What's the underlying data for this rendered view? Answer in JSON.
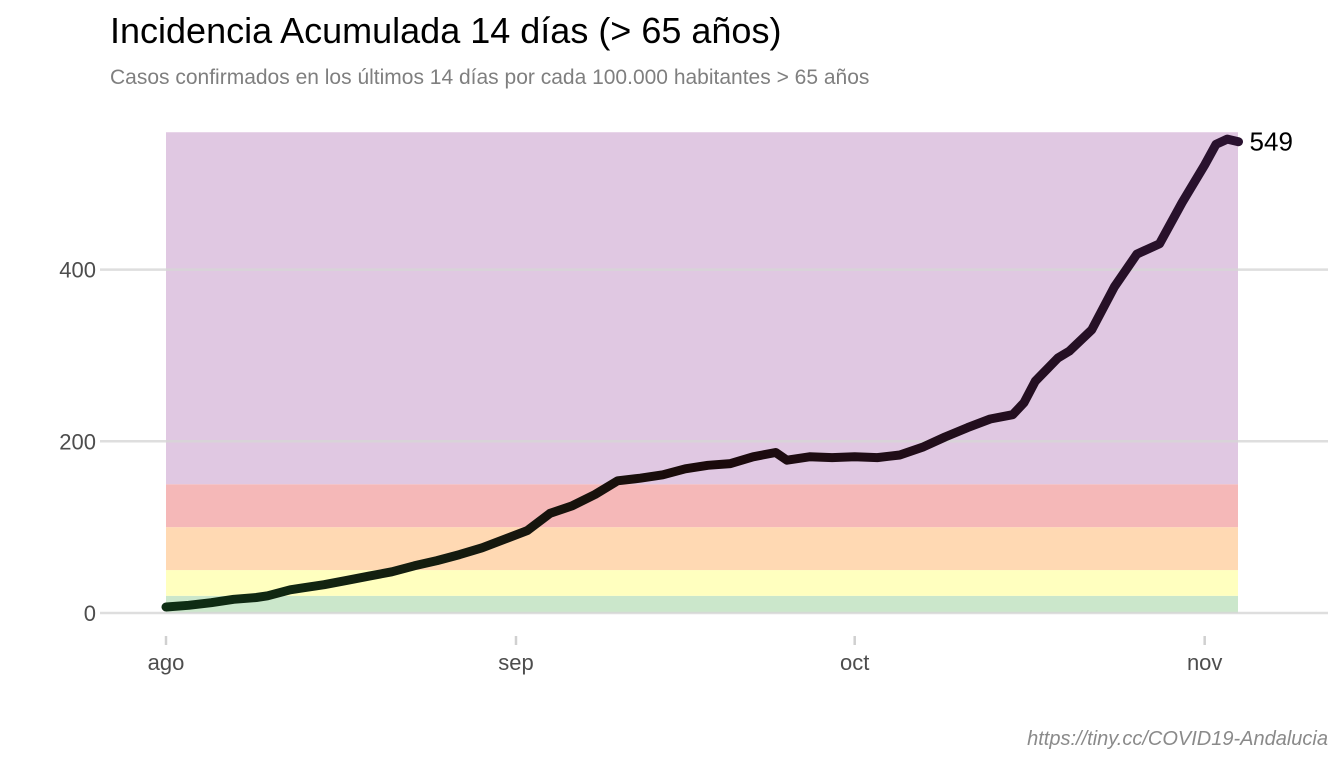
{
  "title": "Incidencia Acumulada 14 días (> 65 años)",
  "subtitle": "Casos confirmados en los últimos 14 días por cada 100.000 habitantes > 65 años",
  "source": "https://tiny.cc/COVID19-Andalucia",
  "chart_data": {
    "type": "line",
    "title": "Incidencia Acumulada 14 días (> 65 años)",
    "subtitle": "Casos confirmados en los últimos 14 días por cada 100.000 habitantes > 65 años",
    "xlabel": "",
    "ylabel": "",
    "xlim": [
      "2020-08-01",
      "2020-11-04"
    ],
    "ylim": [
      0,
      560
    ],
    "x_ticks": [
      {
        "date": "2020-08-01",
        "label": "ago"
      },
      {
        "date": "2020-09-01",
        "label": "sep"
      },
      {
        "date": "2020-10-01",
        "label": "oct"
      },
      {
        "date": "2020-11-01",
        "label": "nov"
      }
    ],
    "y_ticks": [
      0,
      200,
      400
    ],
    "grid": "horizontal",
    "legend": "none",
    "end_label": "549",
    "bands": [
      {
        "from": 0,
        "to": 20,
        "color": "#cbe7cb"
      },
      {
        "from": 20,
        "to": 50,
        "color": "#ffffbf"
      },
      {
        "from": 50,
        "to": 100,
        "color": "#ffd9b3"
      },
      {
        "from": 100,
        "to": 150,
        "color": "#f5b8b8"
      },
      {
        "from": 150,
        "to": 560,
        "color": "#e0c8e2"
      }
    ],
    "line_colors": {
      "start": "#0e2e14",
      "middle": "#1a0a0a",
      "end": "#2a1230"
    },
    "series": [
      {
        "x": [
          "2020-08-01",
          "2020-08-03",
          "2020-08-05",
          "2020-08-07",
          "2020-08-09",
          "2020-08-10",
          "2020-08-12",
          "2020-08-13",
          "2020-08-15",
          "2020-08-17",
          "2020-08-19",
          "2020-08-21",
          "2020-08-23",
          "2020-08-25",
          "2020-08-27",
          "2020-08-29",
          "2020-08-31",
          "2020-09-02",
          "2020-09-04",
          "2020-09-06",
          "2020-09-08",
          "2020-09-10",
          "2020-09-12",
          "2020-09-14",
          "2020-09-16",
          "2020-09-18",
          "2020-09-20",
          "2020-09-22",
          "2020-09-24",
          "2020-09-25",
          "2020-09-27",
          "2020-09-29",
          "2020-10-01",
          "2020-10-03",
          "2020-10-05",
          "2020-10-07",
          "2020-10-09",
          "2020-10-11",
          "2020-10-13",
          "2020-10-15",
          "2020-10-16",
          "2020-10-17",
          "2020-10-19",
          "2020-10-20",
          "2020-10-22",
          "2020-10-24",
          "2020-10-26",
          "2020-10-28",
          "2020-10-30",
          "2020-11-01",
          "2020-11-02",
          "2020-11-03",
          "2020-11-04"
        ],
        "y": [
          7,
          9,
          12,
          16,
          18,
          20,
          27,
          29,
          33,
          38,
          43,
          48,
          55,
          61,
          68,
          76,
          86,
          96,
          116,
          125,
          138,
          154,
          157,
          161,
          168,
          172,
          174,
          182,
          187,
          178,
          182,
          181,
          182,
          181,
          184,
          193,
          205,
          216,
          226,
          231,
          245,
          270,
          297,
          305,
          330,
          380,
          418,
          430,
          478,
          522,
          546,
          552,
          549
        ]
      }
    ]
  }
}
